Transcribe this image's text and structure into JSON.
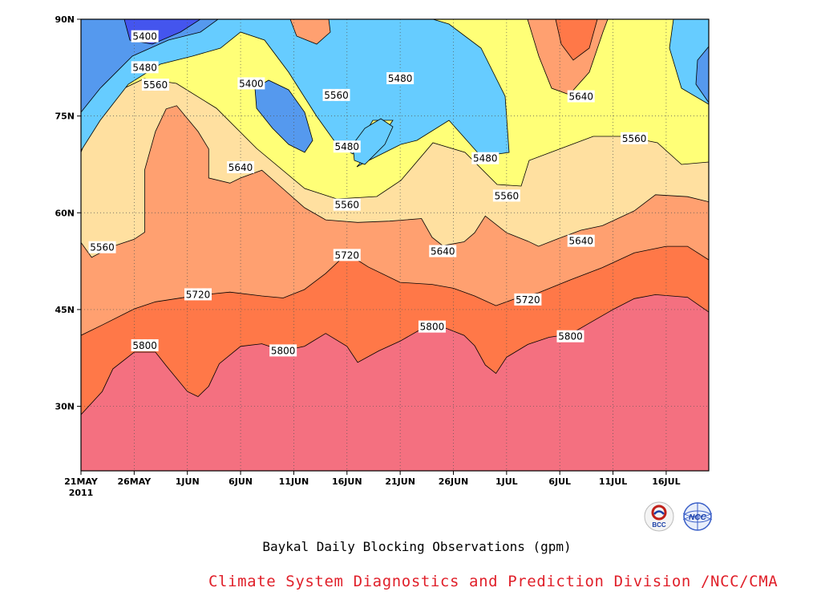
{
  "chart_data": {
    "type": "contour",
    "title": "Baykal Daily Blocking Observations (gpm)",
    "credit": "Climate System Diagnostics and Prediction Division /NCC/CMA",
    "x_axis": {
      "type": "date",
      "range": [
        "2011-05-21",
        "2011-07-19"
      ],
      "tick_labels": [
        "21MAY",
        "26MAY",
        "1JUN",
        "6JUN",
        "11JUN",
        "16JUN",
        "21JUN",
        "26JUN",
        "1JUL",
        "6JUL",
        "11JUL",
        "16JUL"
      ],
      "year_label": "2011"
    },
    "y_axis": {
      "range": [
        20,
        90
      ],
      "tick_labels": [
        "30N",
        "45N",
        "60N",
        "75N",
        "90N"
      ],
      "tick_values": [
        30,
        45,
        60,
        75,
        90
      ]
    },
    "grid": true,
    "contour_levels": [
      5400,
      5480,
      5560,
      5640,
      5720,
      5800
    ],
    "fill_colors": {
      "below_5400": "#4455ee",
      "5400_5480": "#5599ee",
      "5480_5560": "#66ccff",
      "5560_5640": "#ffff77",
      "5640_5720": "#ffe0a0",
      "5720_5800": "#ffa070",
      "5800_5880": "#ff7848",
      "above_5880": "#f47080"
    },
    "contour_labels": [
      {
        "value": "5400",
        "date": "2011-05-27",
        "lat": 87.3
      },
      {
        "value": "5480",
        "date": "2011-05-27",
        "lat": 82.5
      },
      {
        "value": "5560",
        "date": "2011-05-28",
        "lat": 79.8
      },
      {
        "value": "5400",
        "date": "2011-06-06",
        "lat": 80.0
      },
      {
        "value": "5560",
        "date": "2011-06-14",
        "lat": 78.2
      },
      {
        "value": "5480",
        "date": "2011-06-20",
        "lat": 80.8
      },
      {
        "value": "5480",
        "date": "2011-06-15",
        "lat": 70.2
      },
      {
        "value": "5640",
        "date": "2011-06-05",
        "lat": 67.0
      },
      {
        "value": "5560",
        "date": "2011-06-15",
        "lat": 61.2
      },
      {
        "value": "5480",
        "date": "2011-06-28",
        "lat": 68.4
      },
      {
        "value": "5560",
        "date": "2011-06-30",
        "lat": 62.6
      },
      {
        "value": "5640",
        "date": "2011-07-07",
        "lat": 78.0
      },
      {
        "value": "5560",
        "date": "2011-07-12",
        "lat": 71.5
      },
      {
        "value": "5560",
        "date": "2011-05-23",
        "lat": 54.6
      },
      {
        "value": "5720",
        "date": "2011-06-15",
        "lat": 53.4
      },
      {
        "value": "5640",
        "date": "2011-06-24",
        "lat": 54.0
      },
      {
        "value": "5640",
        "date": "2011-07-07",
        "lat": 55.6
      },
      {
        "value": "5720",
        "date": "2011-06-01",
        "lat": 47.3
      },
      {
        "value": "5720",
        "date": "2011-07-02",
        "lat": 46.5
      },
      {
        "value": "5800",
        "date": "2011-05-27",
        "lat": 39.4
      },
      {
        "value": "5800",
        "date": "2011-06-09",
        "lat": 38.6
      },
      {
        "value": "5800",
        "date": "2011-06-23",
        "lat": 42.3
      },
      {
        "value": "5800",
        "date": "2011-07-06",
        "lat": 40.8
      }
    ],
    "contours": [
      {
        "level": 5800,
        "fill": "above_5880",
        "points": [
          [
            "2011-05-21",
            28.7
          ],
          [
            "2011-05-23",
            32.3
          ],
          [
            "2011-05-24",
            35.8
          ],
          [
            "2011-05-26",
            38.4
          ],
          [
            "2011-05-28",
            38.4
          ],
          [
            "2011-05-29",
            36.3
          ],
          [
            "2011-05-31",
            32.3
          ],
          [
            "2011-06-01",
            31.5
          ],
          [
            "2011-06-02",
            33.1
          ],
          [
            "2011-06-03",
            36.6
          ],
          [
            "2011-06-05",
            39.3
          ],
          [
            "2011-06-07",
            39.7
          ],
          [
            "2011-06-09",
            38.6
          ],
          [
            "2011-06-11",
            39.3
          ],
          [
            "2011-06-13",
            41.3
          ],
          [
            "2011-06-15",
            39.3
          ],
          [
            "2011-06-16",
            36.8
          ],
          [
            "2011-06-18",
            38.6
          ],
          [
            "2011-06-20",
            40.1
          ],
          [
            "2011-06-22",
            42.0
          ],
          [
            "2011-06-24",
            42.3
          ],
          [
            "2011-06-26",
            41.0
          ],
          [
            "2011-06-27",
            39.4
          ],
          [
            "2011-06-28",
            36.4
          ],
          [
            "2011-06-29",
            35.1
          ],
          [
            "2011-06-30",
            37.6
          ],
          [
            "2011-07-02",
            39.6
          ],
          [
            "2011-07-04",
            40.7
          ],
          [
            "2011-07-06",
            41.2
          ],
          [
            "2011-07-08",
            43.1
          ],
          [
            "2011-07-10",
            45.0
          ],
          [
            "2011-07-12",
            46.7
          ],
          [
            "2011-07-14",
            47.3
          ],
          [
            "2011-07-17",
            46.9
          ],
          [
            "2011-07-19",
            44.6
          ]
        ]
      },
      {
        "level": 5720,
        "fill": "5800_5880",
        "points": [
          [
            "2011-05-21",
            41.0
          ],
          [
            "2011-05-23",
            42.6
          ],
          [
            "2011-05-26",
            45.1
          ],
          [
            "2011-05-28",
            46.2
          ],
          [
            "2011-06-01",
            47.2
          ],
          [
            "2011-06-04",
            47.7
          ],
          [
            "2011-06-07",
            47.1
          ],
          [
            "2011-06-09",
            46.8
          ],
          [
            "2011-06-11",
            48.1
          ],
          [
            "2011-06-13",
            50.6
          ],
          [
            "2011-06-15",
            53.7
          ],
          [
            "2011-06-17",
            51.6
          ],
          [
            "2011-06-20",
            49.2
          ],
          [
            "2011-06-23",
            48.9
          ],
          [
            "2011-06-25",
            48.3
          ],
          [
            "2011-06-27",
            47.1
          ],
          [
            "2011-06-29",
            45.6
          ],
          [
            "2011-07-01",
            46.8
          ],
          [
            "2011-07-03",
            47.6
          ],
          [
            "2011-07-06",
            49.6
          ],
          [
            "2011-07-09",
            51.5
          ],
          [
            "2011-07-12",
            53.8
          ],
          [
            "2011-07-15",
            54.8
          ],
          [
            "2011-07-17",
            54.8
          ],
          [
            "2011-07-19",
            52.7
          ]
        ]
      },
      {
        "level": 5640,
        "fill": "5720_5800",
        "points": [
          [
            "2011-05-21",
            55.4
          ],
          [
            "2011-05-22",
            53.1
          ],
          [
            "2011-05-24",
            54.8
          ],
          [
            "2011-05-26",
            55.9
          ],
          [
            "2011-05-27",
            57.0
          ],
          [
            "2011-05-27",
            66.7
          ],
          [
            "2011-05-28",
            72.6
          ],
          [
            "2011-05-29",
            76.1
          ],
          [
            "2011-05-30",
            76.6
          ],
          [
            "2011-06-01",
            72.6
          ],
          [
            "2011-06-02",
            69.9
          ],
          [
            "2011-06-02",
            65.4
          ],
          [
            "2011-06-04",
            64.6
          ],
          [
            "2011-06-05",
            65.4
          ],
          [
            "2011-06-07",
            66.6
          ],
          [
            "2011-06-09",
            63.7
          ],
          [
            "2011-06-11",
            60.8
          ],
          [
            "2011-06-13",
            58.9
          ],
          [
            "2011-06-16",
            58.5
          ],
          [
            "2011-06-19",
            58.7
          ],
          [
            "2011-06-22",
            59.1
          ],
          [
            "2011-06-23",
            56.2
          ],
          [
            "2011-06-24",
            54.9
          ],
          [
            "2011-06-26",
            55.5
          ],
          [
            "2011-06-27",
            56.9
          ],
          [
            "2011-06-28",
            59.5
          ],
          [
            "2011-06-30",
            56.9
          ],
          [
            "2011-07-02",
            55.6
          ],
          [
            "2011-07-03",
            54.8
          ],
          [
            "2011-07-05",
            56.1
          ],
          [
            "2011-07-07",
            57.3
          ],
          [
            "2011-07-09",
            58.0
          ],
          [
            "2011-07-12",
            60.3
          ],
          [
            "2011-07-14",
            62.8
          ],
          [
            "2011-07-17",
            62.5
          ],
          [
            "2011-07-19",
            61.7
          ]
        ]
      }
    ]
  },
  "branding": {
    "bcc_text": "BCC",
    "ncc_text": "NCC"
  }
}
